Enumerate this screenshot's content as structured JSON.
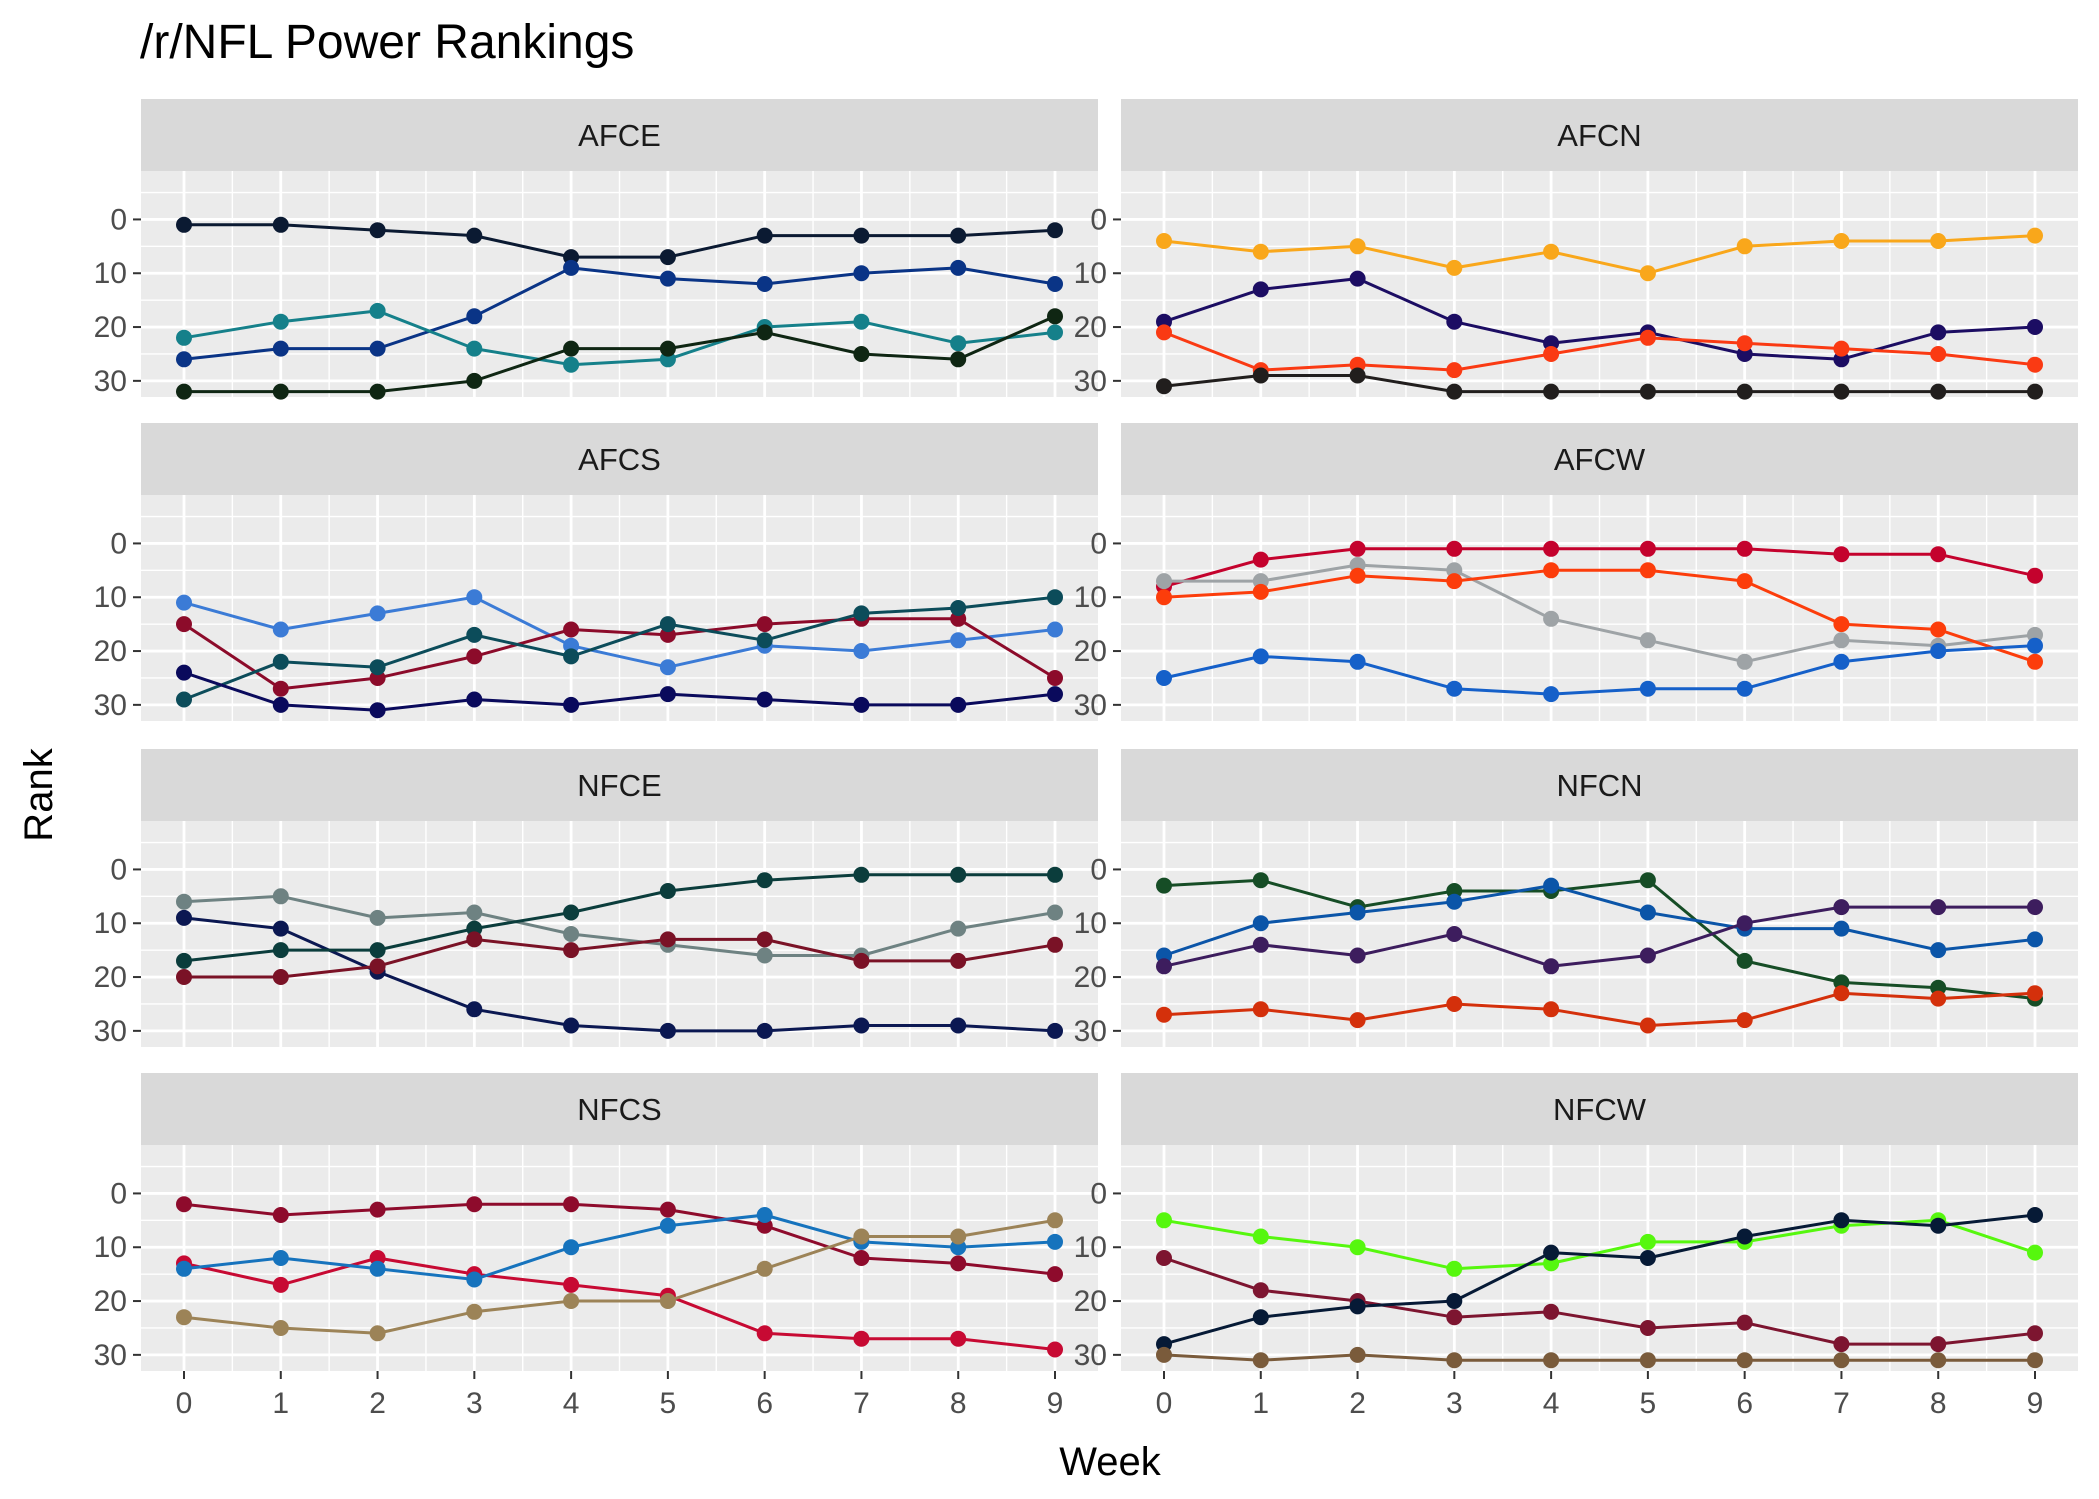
{
  "chart_data": {
    "type": "line",
    "title": "/r/NFL Power Rankings",
    "xlabel": "Week",
    "ylabel": "Rank",
    "x": [
      0,
      1,
      2,
      3,
      4,
      5,
      6,
      7,
      8,
      9
    ],
    "x_ticks": [
      "0",
      "1",
      "2",
      "3",
      "4",
      "5",
      "6",
      "7",
      "8",
      "9"
    ],
    "y_ticks": [
      "0",
      "10",
      "20",
      "30"
    ],
    "ylim": [
      -9,
      33
    ],
    "y_reversed": true,
    "grid": true,
    "legend": "none",
    "panels": [
      {
        "name": "AFCE",
        "series": [
          {
            "color": "#0b1a32",
            "values": [
              1,
              1,
              2,
              3,
              7,
              7,
              3,
              3,
              3,
              2
            ]
          },
          {
            "color": "#0a3486",
            "values": [
              26,
              24,
              24,
              18,
              9,
              11,
              12,
              10,
              9,
              12
            ]
          },
          {
            "color": "#15808a",
            "values": [
              22,
              19,
              17,
              24,
              27,
              26,
              20,
              19,
              23,
              21
            ]
          },
          {
            "color": "#0f2613",
            "values": [
              32,
              32,
              32,
              30,
              24,
              24,
              21,
              25,
              26,
              18
            ]
          }
        ]
      },
      {
        "name": "AFCN",
        "series": [
          {
            "color": "#f9a71b",
            "values": [
              4,
              6,
              5,
              9,
              6,
              10,
              5,
              4,
              4,
              3
            ]
          },
          {
            "color": "#1c0d63",
            "values": [
              19,
              13,
              11,
              19,
              23,
              21,
              25,
              26,
              21,
              20
            ]
          },
          {
            "color": "#fa3a13",
            "values": [
              21,
              28,
              27,
              28,
              25,
              22,
              23,
              24,
              25,
              27
            ]
          },
          {
            "color": "#211e1d",
            "values": [
              31,
              29,
              29,
              32,
              32,
              32,
              32,
              32,
              32,
              32
            ]
          }
        ]
      },
      {
        "name": "AFCS",
        "series": [
          {
            "color": "#3b7bd6",
            "values": [
              11,
              16,
              13,
              10,
              19,
              23,
              19,
              20,
              18,
              16
            ]
          },
          {
            "color": "#8c0b2a",
            "values": [
              15,
              27,
              25,
              21,
              16,
              17,
              15,
              14,
              14,
              25
            ]
          },
          {
            "color": "#0c4c5a",
            "values": [
              29,
              22,
              23,
              17,
              21,
              15,
              18,
              13,
              12,
              10
            ]
          },
          {
            "color": "#0a0a5c",
            "values": [
              24,
              30,
              31,
              29,
              30,
              28,
              29,
              30,
              30,
              28
            ]
          }
        ]
      },
      {
        "name": "AFCW",
        "series": [
          {
            "color": "#c4022d",
            "values": [
              8,
              3,
              1,
              1,
              1,
              1,
              1,
              2,
              2,
              6
            ]
          },
          {
            "color": "#9ea3a6",
            "values": [
              7,
              7,
              4,
              5,
              14,
              18,
              22,
              18,
              19,
              17
            ]
          },
          {
            "color": "#fc3d0b",
            "values": [
              10,
              9,
              6,
              7,
              5,
              5,
              7,
              15,
              16,
              22
            ]
          },
          {
            "color": "#1560c9",
            "values": [
              25,
              21,
              22,
              27,
              28,
              27,
              27,
              22,
              20,
              19
            ]
          }
        ]
      },
      {
        "name": "NFCE",
        "series": [
          {
            "color": "#6e8282",
            "values": [
              6,
              5,
              9,
              8,
              12,
              14,
              16,
              16,
              11,
              8
            ]
          },
          {
            "color": "#0b1852",
            "values": [
              9,
              11,
              19,
              26,
              29,
              30,
              30,
              29,
              29,
              30
            ]
          },
          {
            "color": "#0b3d3c",
            "values": [
              17,
              15,
              15,
              11,
              8,
              4,
              2,
              1,
              1,
              1
            ]
          },
          {
            "color": "#7a1226",
            "values": [
              20,
              20,
              18,
              13,
              15,
              13,
              13,
              17,
              17,
              14
            ]
          }
        ]
      },
      {
        "name": "NFCN",
        "series": [
          {
            "color": "#164d26",
            "values": [
              3,
              2,
              7,
              4,
              4,
              2,
              17,
              21,
              22,
              24
            ]
          },
          {
            "color": "#0b55a8",
            "values": [
              16,
              10,
              8,
              6,
              3,
              8,
              11,
              11,
              15,
              13
            ]
          },
          {
            "color": "#3d1d5e",
            "values": [
              18,
              14,
              16,
              12,
              18,
              16,
              10,
              7,
              7,
              7
            ]
          },
          {
            "color": "#d4300b",
            "values": [
              27,
              26,
              28,
              25,
              26,
              29,
              28,
              23,
              24,
              23
            ]
          }
        ]
      },
      {
        "name": "NFCS",
        "series": [
          {
            "color": "#8e0b2c",
            "values": [
              2,
              4,
              3,
              2,
              2,
              3,
              6,
              12,
              13,
              15
            ]
          },
          {
            "color": "#c70a33",
            "values": [
              13,
              17,
              12,
              15,
              17,
              19,
              26,
              27,
              27,
              29
            ]
          },
          {
            "color": "#1673bd",
            "values": [
              14,
              12,
              14,
              16,
              10,
              6,
              4,
              9,
              10,
              9
            ]
          },
          {
            "color": "#9c8357",
            "values": [
              23,
              25,
              26,
              22,
              20,
              20,
              14,
              8,
              8,
              5
            ]
          }
        ]
      },
      {
        "name": "NFCW",
        "series": [
          {
            "color": "#56f70e",
            "values": [
              5,
              8,
              10,
              14,
              13,
              9,
              9,
              6,
              5,
              11
            ]
          },
          {
            "color": "#7d1530",
            "values": [
              12,
              18,
              20,
              23,
              22,
              25,
              24,
              28,
              28,
              26
            ]
          },
          {
            "color": "#061a36",
            "values": [
              28,
              23,
              21,
              20,
              11,
              12,
              8,
              5,
              6,
              4
            ]
          },
          {
            "color": "#7a5b3b",
            "values": [
              30,
              31,
              30,
              31,
              31,
              31,
              31,
              31,
              31,
              31
            ]
          }
        ]
      }
    ]
  }
}
